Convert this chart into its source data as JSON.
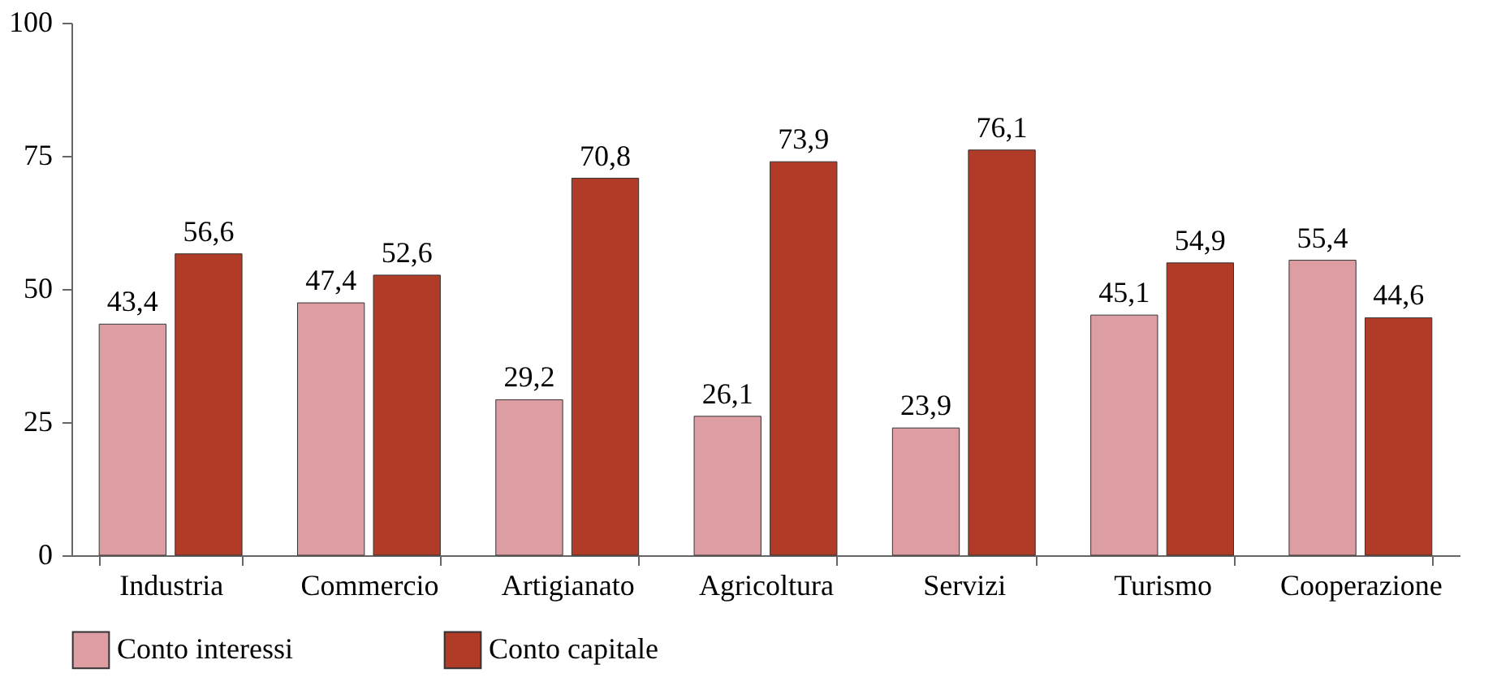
{
  "chart_data": {
    "type": "bar",
    "categories": [
      "Industria",
      "Commercio",
      "Artigianato",
      "Agricoltura",
      "Servizi",
      "Turismo",
      "Cooperazione"
    ],
    "series": [
      {
        "name": "Conto interessi",
        "color": "#dc9ea3",
        "values": [
          43.4,
          47.4,
          29.2,
          26.1,
          23.9,
          45.1,
          55.4
        ],
        "value_labels": [
          "43,4",
          "47,4",
          "29,2",
          "26,1",
          "23,9",
          "45,1",
          "55,4"
        ]
      },
      {
        "name": "Conto capitale",
        "color": "#b03b27",
        "values": [
          56.6,
          52.6,
          70.8,
          73.9,
          76.1,
          54.9,
          44.6
        ],
        "value_labels": [
          "56,6",
          "52,6",
          "70,8",
          "73,9",
          "76,1",
          "54,9",
          "44,6"
        ]
      }
    ],
    "ylim": [
      0,
      100
    ],
    "yticks": [
      0,
      25,
      50,
      75,
      100
    ],
    "grid": false,
    "legend": "bottom"
  }
}
